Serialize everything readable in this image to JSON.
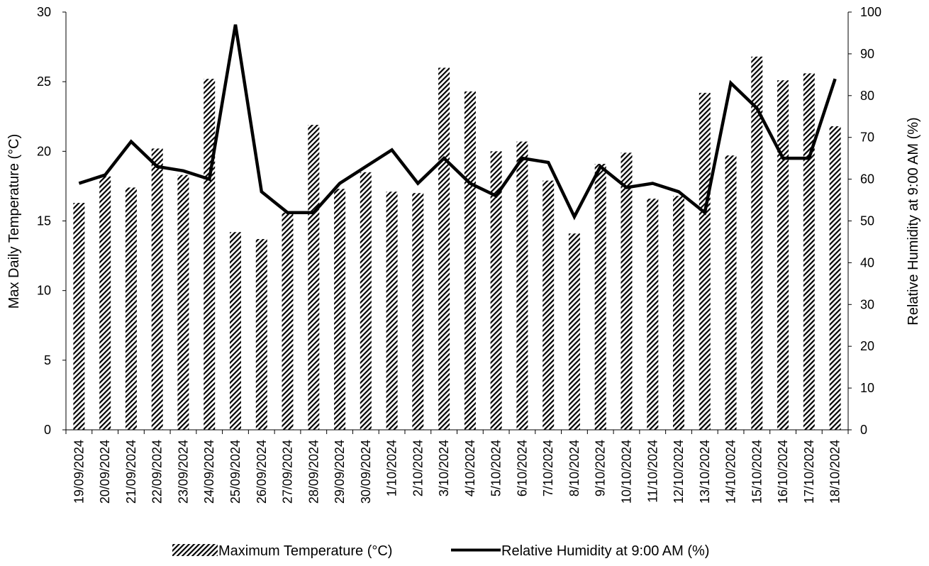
{
  "chart_data": {
    "type": "bar",
    "categories": [
      "19/09/2024",
      "20/09/2024",
      "21/09/2024",
      "22/09/2024",
      "23/09/2024",
      "24/09/2024",
      "25/09/2024",
      "26/09/2024",
      "27/09/2024",
      "28/09/2024",
      "29/09/2024",
      "30/09/2024",
      "1/10/2024",
      "2/10/2024",
      "3/10/2024",
      "4/10/2024",
      "5/10/2024",
      "6/10/2024",
      "7/10/2024",
      "8/10/2024",
      "9/10/2024",
      "10/10/2024",
      "11/10/2024",
      "12/10/2024",
      "13/10/2024",
      "14/10/2024",
      "15/10/2024",
      "16/10/2024",
      "17/10/2024",
      "18/10/2024"
    ],
    "series": [
      {
        "name": "Maximum Temperature (°C)",
        "type": "bar",
        "axis": "left",
        "pattern": "diagonal-hatch",
        "color": "#000000",
        "values": [
          16.3,
          18.2,
          17.4,
          20.2,
          18.3,
          25.2,
          14.2,
          13.7,
          15.6,
          21.9,
          17.3,
          18.5,
          17.1,
          17.0,
          26.0,
          24.3,
          20.0,
          20.7,
          17.9,
          14.1,
          19.1,
          19.9,
          16.6,
          16.8,
          24.2,
          19.7,
          26.8,
          25.1,
          25.6,
          21.8
        ]
      },
      {
        "name": "Relative Humidity at 9:00 AM (%)",
        "type": "line",
        "axis": "right",
        "color": "#000000",
        "values": [
          59,
          61,
          69,
          63,
          62,
          60,
          97,
          57,
          52,
          52,
          59,
          63,
          67,
          59,
          65,
          59,
          56,
          65,
          64,
          51,
          63,
          58,
          59,
          57,
          52,
          83,
          77,
          65,
          65,
          84
        ]
      }
    ],
    "ylabel": "Max Daily Temperature (°C)",
    "y2label": "Relative Humidity at 9:00 AM (%)",
    "xlabel": "",
    "ylim": [
      0,
      30
    ],
    "y2lim": [
      0,
      100
    ],
    "yticks": [
      "0",
      "5",
      "10",
      "15",
      "20",
      "25",
      "30"
    ],
    "y2ticks": [
      "0",
      "10",
      "20",
      "30",
      "40",
      "50",
      "60",
      "70",
      "80",
      "90",
      "100"
    ],
    "grid": false,
    "legend_position": "bottom"
  }
}
